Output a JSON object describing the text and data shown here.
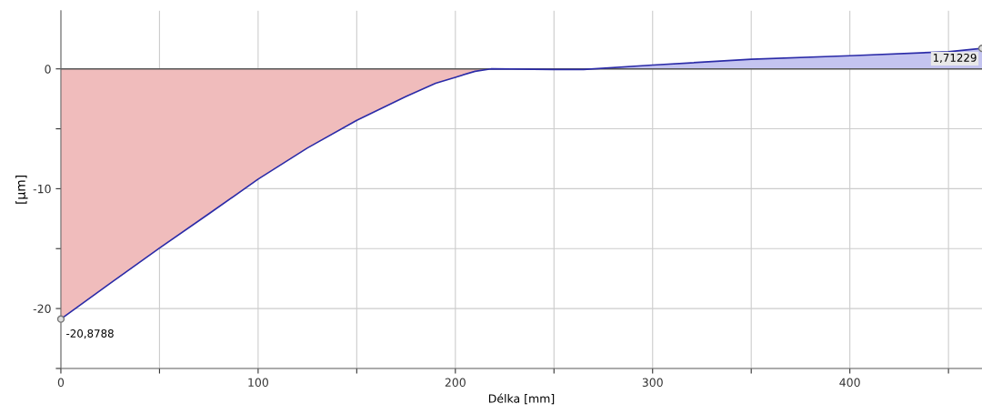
{
  "chart_data": {
    "type": "area",
    "xlabel": "Délka [mm]",
    "ylabel": "[µm]",
    "xlim": [
      0,
      467
    ],
    "ylim": [
      -25,
      4.85
    ],
    "xticks": [
      0,
      {
        "value": 50,
        "label": null
      },
      100,
      {
        "value": 150,
        "label": null
      },
      200,
      {
        "value": 250,
        "label": null
      },
      300,
      {
        "value": 350,
        "label": null
      },
      400,
      {
        "value": 450,
        "label": null
      }
    ],
    "yticks": [
      {
        "value": -25,
        "label": null
      },
      -20,
      {
        "value": -15,
        "label": null
      },
      -10,
      {
        "value": -5,
        "label": null
      },
      0
    ],
    "grid": true,
    "series": [
      {
        "color": "#f0bcbc",
        "x": [
          0,
          25,
          50,
          75,
          100,
          125,
          150,
          175,
          190,
          200,
          210,
          218
        ],
        "values": [
          -20.8788,
          -17.9,
          -14.95,
          -12.1,
          -9.2,
          -6.6,
          -4.3,
          -2.3,
          -1.2,
          -0.7,
          -0.2,
          0
        ]
      },
      {
        "color": "#c4c4f0",
        "x": [
          218,
          250,
          265,
          300,
          350,
          400,
          450,
          467
        ],
        "values": [
          0,
          -0.05,
          -0.05,
          0.32,
          0.8,
          1.1,
          1.43,
          1.71229
        ]
      },
      {
        "type": "line",
        "color": "#2c2ca8",
        "x": [
          0,
          25,
          50,
          75,
          100,
          125,
          150,
          175,
          190,
          200,
          210,
          218,
          250,
          265,
          300,
          350,
          400,
          450,
          467
        ],
        "values": [
          -20.8788,
          -17.9,
          -14.95,
          -12.1,
          -9.2,
          -6.6,
          -4.3,
          -2.3,
          -1.2,
          -0.7,
          -0.2,
          0,
          -0.05,
          -0.05,
          0.32,
          0.8,
          1.1,
          1.43,
          1.71229
        ]
      }
    ],
    "annotations": [
      {
        "text": "-20,8788",
        "x": 0,
        "y": -20.8788
      },
      {
        "text": "1,71229",
        "x": 467,
        "y": 1.71229
      }
    ]
  }
}
